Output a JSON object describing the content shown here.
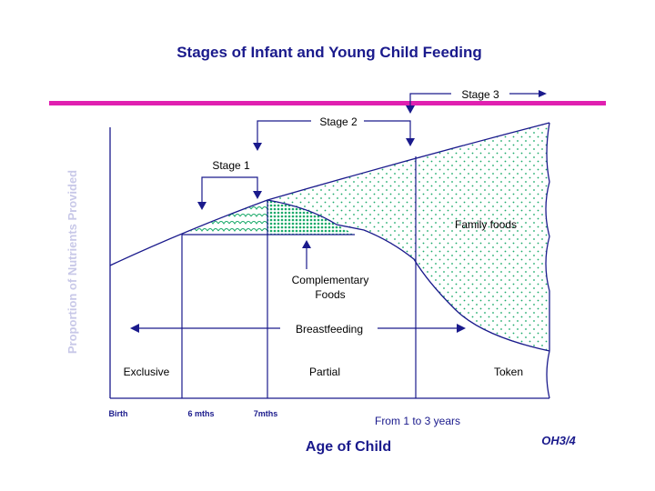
{
  "title": "Stages of Infant and Young Child Feeding",
  "y_axis_label": "Proportion of Nutrients Provided",
  "x_axis_label": "Age of Child",
  "x_ticks": [
    "Birth",
    "6 mths",
    "7mths"
  ],
  "x_range_note": "From 1 to 3 years",
  "stages": {
    "stage1": "Stage 1",
    "stage2": "Stage 2",
    "stage3": "Stage 3"
  },
  "regions": {
    "family_foods": "Family foods",
    "complementary_line1": "Complementary",
    "complementary_line2": "Foods",
    "breastfeeding": "Breastfeeding",
    "exclusive": "Exclusive",
    "partial": "Partial",
    "token": "Token"
  },
  "slide_code": "OH3/4",
  "colors": {
    "ink": "#1a1a8c",
    "magenta_bar": "#e020b0",
    "axis_label": "#c8c8e8",
    "green_dot": "#1aaa6a",
    "text": "#000000"
  }
}
